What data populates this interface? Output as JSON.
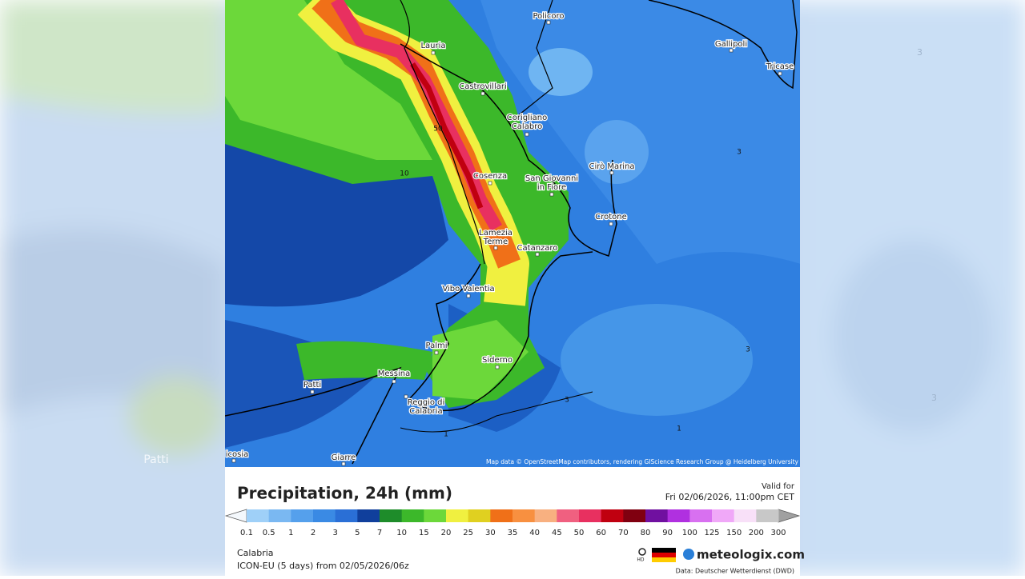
{
  "background": {
    "labels": [
      "Patti",
      "3",
      "3"
    ]
  },
  "map": {
    "cities": [
      {
        "lines": [
          "Policoro"
        ]
      },
      {
        "lines": [
          "Gallipoli"
        ]
      },
      {
        "lines": [
          "Lauria"
        ]
      },
      {
        "lines": [
          "Tricase"
        ]
      },
      {
        "lines": [
          "Castrovillari"
        ]
      },
      {
        "lines": [
          "Corigliano",
          "Calabro"
        ]
      },
      {
        "lines": [
          "Cosenza"
        ]
      },
      {
        "lines": [
          "San Giovanni",
          "in Fiore"
        ]
      },
      {
        "lines": [
          "Cirò Marina"
        ]
      },
      {
        "lines": [
          "Crotone"
        ]
      },
      {
        "lines": [
          "Lamezia",
          "Terme"
        ]
      },
      {
        "lines": [
          "Catanzaro"
        ]
      },
      {
        "lines": [
          "Vibo Valentia"
        ]
      },
      {
        "lines": [
          "Palmi"
        ]
      },
      {
        "lines": [
          "Siderno"
        ]
      },
      {
        "lines": [
          "Messina"
        ]
      },
      {
        "lines": [
          "Patti"
        ]
      },
      {
        "lines": [
          "Reggio di",
          "Calabria"
        ]
      },
      {
        "lines": [
          "icosia"
        ]
      },
      {
        "lines": [
          "Giarre"
        ]
      }
    ],
    "contour_labels": [
      "50",
      "10",
      "3",
      "3",
      "1",
      "1",
      "3"
    ],
    "attribution": "Map data © OpenStreetMap contributors, rendering GIScience Research Group @ Heidelberg University"
  },
  "footer": {
    "title": "Precipitation, 24h (mm)",
    "valid_label": "Valid for",
    "valid_time": "Fri 02/06/2026, 11:00pm CET",
    "region": "Calabria",
    "model": "ICON-EU (5 days) from 02/05/2026/06z",
    "hd": "HD",
    "brand": "meteologix.com",
    "source": "Data: Deutscher Wetterdienst (DWD)"
  },
  "legend": {
    "ticks": [
      0.1,
      0.5,
      1,
      2,
      3,
      5,
      7,
      10,
      15,
      20,
      25,
      30,
      35,
      40,
      45,
      50,
      60,
      70,
      80,
      90,
      100,
      125,
      150,
      200,
      300
    ],
    "colors": [
      "#9fd0f8",
      "#7ab8f2",
      "#55a0ec",
      "#3a8ae4",
      "#2a6fd6",
      "#103f9c",
      "#1e8c2a",
      "#3cb82a",
      "#6cd83a",
      "#f0f040",
      "#e0d020",
      "#f07018",
      "#f89040",
      "#f8b080",
      "#f06080",
      "#e83060",
      "#c00010",
      "#800010",
      "#7010a0",
      "#b030e0",
      "#d870f0",
      "#f0a8f8",
      "#f8e0f8",
      "#c8c8c8"
    ],
    "below_color": "#f4f8fc",
    "above_color": "#a0a0a0"
  }
}
